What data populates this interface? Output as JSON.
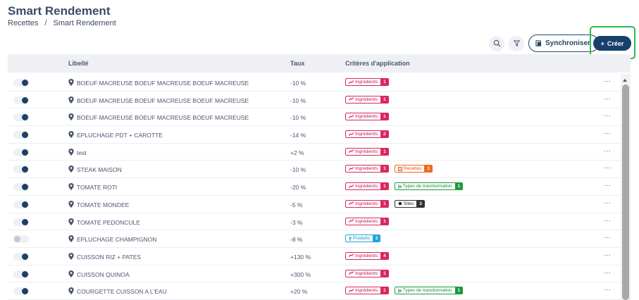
{
  "page": {
    "title": "Smart Rendement"
  },
  "breadcrumb": {
    "items": [
      "Recettes",
      "Smart Rendement"
    ],
    "separator": "/"
  },
  "toolbar": {
    "search_icon": "search-icon",
    "filter_icon": "filter-icon",
    "sync_label": "Synchroniser",
    "create_label": "Créer",
    "create_highlight_color": "#2cbb4a"
  },
  "table": {
    "columns": {
      "libelle": "Libellé",
      "taux": "Taux",
      "criteres": "Critères d'application"
    },
    "rows": [
      {
        "enabled": true,
        "label": "BOEUF MACREUSE BOEUF MACREUSE BOEUF MACREUSE",
        "rate": "-10 %",
        "tags": [
          {
            "type": "ing",
            "name": "Ingrédients",
            "count": "1"
          }
        ]
      },
      {
        "enabled": true,
        "label": "BOEUF MACREUSE BOEUF MACREUSE BOEUF MACREUSE",
        "rate": "-10 %",
        "tags": [
          {
            "type": "ing",
            "name": "Ingrédients",
            "count": "1"
          }
        ]
      },
      {
        "enabled": true,
        "label": "BOEUF MACREUSE BOEUF MACREUSE BOEUF MACREUSE",
        "rate": "-10 %",
        "tags": [
          {
            "type": "ing",
            "name": "Ingrédients",
            "count": "1"
          }
        ]
      },
      {
        "enabled": true,
        "label": "EPLUCHAGE PDT + CAROTTE",
        "rate": "-14 %",
        "tags": [
          {
            "type": "ing",
            "name": "Ingrédients",
            "count": "2"
          }
        ]
      },
      {
        "enabled": true,
        "label": "test",
        "rate": "+2 %",
        "tags": [
          {
            "type": "ing",
            "name": "Ingrédients",
            "count": "1"
          }
        ]
      },
      {
        "enabled": true,
        "label": "STEAK MAISON",
        "rate": "-10 %",
        "tags": [
          {
            "type": "ing",
            "name": "Ingrédients",
            "count": "1"
          },
          {
            "type": "rec",
            "name": "Recettes",
            "count": "1"
          }
        ]
      },
      {
        "enabled": true,
        "label": "TOMATE ROTI",
        "rate": "-20 %",
        "tags": [
          {
            "type": "ing",
            "name": "Ingrédients",
            "count": "1"
          },
          {
            "type": "typ",
            "name": "Types de transformation",
            "count": "1"
          }
        ]
      },
      {
        "enabled": true,
        "label": "TOMATE MONDEE",
        "rate": "-5 %",
        "tags": [
          {
            "type": "ing",
            "name": "Ingrédients",
            "count": "1"
          },
          {
            "type": "sit",
            "name": "Sites",
            "count": "3"
          }
        ]
      },
      {
        "enabled": true,
        "label": "TOMATE PEDONCULE",
        "rate": "-3 %",
        "tags": [
          {
            "type": "ing",
            "name": "Ingrédients",
            "count": "1"
          }
        ]
      },
      {
        "enabled": false,
        "label": "EPLUCHAGE CHAMPIGNON",
        "rate": "-8 %",
        "tags": [
          {
            "type": "prod",
            "name": "Produits",
            "count": "2"
          }
        ]
      },
      {
        "enabled": true,
        "label": "CUISSON RIZ + PATES",
        "rate": "+130 %",
        "tags": [
          {
            "type": "ing",
            "name": "Ingrédients",
            "count": "4"
          }
        ]
      },
      {
        "enabled": true,
        "label": "CUISSON QUINOA",
        "rate": "+300 %",
        "tags": [
          {
            "type": "ing",
            "name": "Ingrédients",
            "count": "1"
          }
        ]
      },
      {
        "enabled": true,
        "label": "COURGETTE CUISSON A L'EAU",
        "rate": "+20 %",
        "tags": [
          {
            "type": "ing",
            "name": "Ingrédients",
            "count": "1"
          },
          {
            "type": "typ",
            "name": "Types de transformation",
            "count": "1"
          }
        ]
      }
    ],
    "row_menu": "···"
  }
}
